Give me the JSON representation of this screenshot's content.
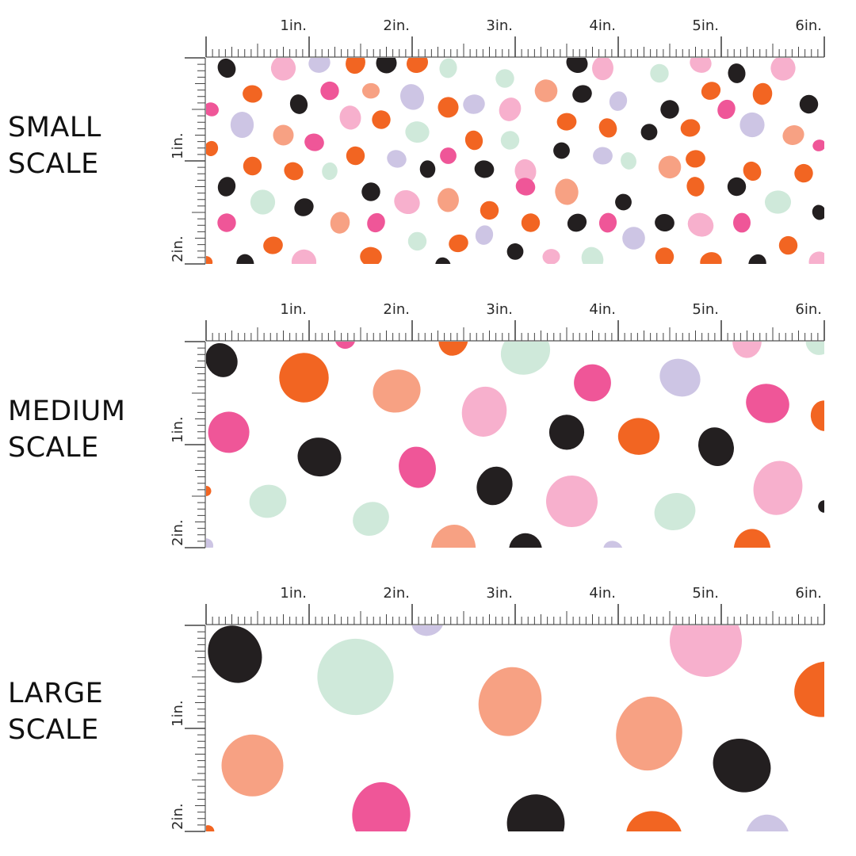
{
  "ruler_units": {
    "x_labels": [
      "1in.",
      "2in.",
      "3in.",
      "4in.",
      "5in.",
      "6in."
    ],
    "y_labels": [
      "1in.",
      "2in."
    ]
  },
  "colors": {
    "black": "#231f20",
    "orange": "#f26522",
    "salmon": "#f7a183",
    "pink": "#f7b0cd",
    "hotpink": "#ef5698",
    "lavender": "#cdc5e4",
    "mint": "#cfe9da"
  },
  "rows": [
    {
      "id": "small",
      "label_lines": [
        "SMALL",
        "SCALE"
      ],
      "dots": [
        [
          0.2,
          0.1,
          0.09,
          "black"
        ],
        [
          0.75,
          0.1,
          0.12,
          "pink"
        ],
        [
          1.1,
          0.05,
          0.1,
          "lavender"
        ],
        [
          1.45,
          0.05,
          0.1,
          "orange"
        ],
        [
          1.75,
          0.05,
          0.1,
          "black"
        ],
        [
          2.05,
          0.05,
          0.1,
          "orange"
        ],
        [
          2.35,
          0.1,
          0.09,
          "mint"
        ],
        [
          2.9,
          0.2,
          0.09,
          "mint"
        ],
        [
          3.6,
          0.05,
          0.1,
          "black"
        ],
        [
          3.85,
          0.1,
          0.11,
          "pink"
        ],
        [
          4.4,
          0.15,
          0.09,
          "mint"
        ],
        [
          4.8,
          0.05,
          0.1,
          "pink"
        ],
        [
          5.15,
          0.15,
          0.09,
          "black"
        ],
        [
          5.6,
          0.1,
          0.12,
          "pink"
        ],
        [
          0.45,
          0.35,
          0.09,
          "orange"
        ],
        [
          0.9,
          0.45,
          0.09,
          "black"
        ],
        [
          1.2,
          0.32,
          0.09,
          "hotpink"
        ],
        [
          1.6,
          0.32,
          0.08,
          "salmon"
        ],
        [
          2.0,
          0.38,
          0.12,
          "lavender"
        ],
        [
          2.35,
          0.48,
          0.1,
          "orange"
        ],
        [
          2.6,
          0.45,
          0.1,
          "lavender"
        ],
        [
          2.95,
          0.5,
          0.11,
          "pink"
        ],
        [
          3.3,
          0.32,
          0.11,
          "salmon"
        ],
        [
          3.65,
          0.35,
          0.09,
          "black"
        ],
        [
          4.0,
          0.42,
          0.09,
          "lavender"
        ],
        [
          4.5,
          0.5,
          0.09,
          "black"
        ],
        [
          4.9,
          0.32,
          0.09,
          "orange"
        ],
        [
          5.4,
          0.35,
          0.1,
          "orange"
        ],
        [
          5.85,
          0.45,
          0.09,
          "black"
        ],
        [
          0.05,
          0.5,
          0.07,
          "hotpink"
        ],
        [
          0.35,
          0.65,
          0.12,
          "lavender"
        ],
        [
          0.75,
          0.75,
          0.1,
          "salmon"
        ],
        [
          1.05,
          0.82,
          0.09,
          "hotpink"
        ],
        [
          1.4,
          0.58,
          0.11,
          "pink"
        ],
        [
          1.7,
          0.6,
          0.09,
          "orange"
        ],
        [
          2.05,
          0.72,
          0.11,
          "mint"
        ],
        [
          2.6,
          0.8,
          0.09,
          "orange"
        ],
        [
          2.95,
          0.8,
          0.09,
          "mint"
        ],
        [
          3.5,
          0.62,
          0.09,
          "orange"
        ],
        [
          3.9,
          0.68,
          0.09,
          "orange"
        ],
        [
          4.3,
          0.72,
          0.08,
          "black"
        ],
        [
          4.7,
          0.68,
          0.09,
          "orange"
        ],
        [
          5.05,
          0.5,
          0.09,
          "hotpink"
        ],
        [
          5.3,
          0.65,
          0.12,
          "lavender"
        ],
        [
          5.7,
          0.75,
          0.1,
          "salmon"
        ],
        [
          0.05,
          0.88,
          0.07,
          "orange"
        ],
        [
          0.45,
          1.05,
          0.09,
          "orange"
        ],
        [
          0.85,
          1.1,
          0.09,
          "orange"
        ],
        [
          1.2,
          1.1,
          0.08,
          "mint"
        ],
        [
          1.45,
          0.95,
          0.09,
          "orange"
        ],
        [
          1.85,
          0.98,
          0.09,
          "lavender"
        ],
        [
          2.15,
          1.08,
          0.08,
          "black"
        ],
        [
          2.35,
          0.95,
          0.08,
          "hotpink"
        ],
        [
          2.7,
          1.08,
          0.09,
          "black"
        ],
        [
          3.1,
          1.1,
          0.11,
          "pink"
        ],
        [
          3.45,
          0.9,
          0.08,
          "black"
        ],
        [
          3.85,
          0.95,
          0.09,
          "lavender"
        ],
        [
          4.1,
          1.0,
          0.08,
          "mint"
        ],
        [
          4.5,
          1.06,
          0.11,
          "salmon"
        ],
        [
          4.75,
          0.98,
          0.09,
          "orange"
        ],
        [
          5.3,
          1.1,
          0.09,
          "orange"
        ],
        [
          5.8,
          1.12,
          0.09,
          "orange"
        ],
        [
          5.95,
          0.85,
          0.06,
          "hotpink"
        ],
        [
          0.2,
          1.25,
          0.09,
          "black"
        ],
        [
          0.55,
          1.4,
          0.12,
          "mint"
        ],
        [
          0.95,
          1.45,
          0.09,
          "black"
        ],
        [
          1.3,
          1.6,
          0.1,
          "salmon"
        ],
        [
          1.6,
          1.3,
          0.09,
          "black"
        ],
        [
          1.95,
          1.4,
          0.12,
          "pink"
        ],
        [
          2.35,
          1.38,
          0.11,
          "salmon"
        ],
        [
          2.75,
          1.48,
          0.09,
          "orange"
        ],
        [
          3.1,
          1.25,
          0.09,
          "hotpink"
        ],
        [
          3.5,
          1.3,
          0.12,
          "salmon"
        ],
        [
          4.05,
          1.4,
          0.08,
          "black"
        ],
        [
          4.45,
          1.6,
          0.09,
          "black"
        ],
        [
          4.75,
          1.25,
          0.09,
          "orange"
        ],
        [
          5.15,
          1.25,
          0.09,
          "black"
        ],
        [
          5.55,
          1.4,
          0.12,
          "mint"
        ],
        [
          5.95,
          1.5,
          0.07,
          "black"
        ],
        [
          0.2,
          1.6,
          0.09,
          "hotpink"
        ],
        [
          0.65,
          1.82,
          0.09,
          "orange"
        ],
        [
          1.65,
          1.6,
          0.09,
          "hotpink"
        ],
        [
          2.05,
          1.78,
          0.09,
          "mint"
        ],
        [
          2.45,
          1.8,
          0.09,
          "orange"
        ],
        [
          2.7,
          1.72,
          0.09,
          "lavender"
        ],
        [
          3.15,
          1.6,
          0.09,
          "orange"
        ],
        [
          3.6,
          1.6,
          0.09,
          "black"
        ],
        [
          3.9,
          1.6,
          0.09,
          "hotpink"
        ],
        [
          4.15,
          1.75,
          0.11,
          "lavender"
        ],
        [
          4.8,
          1.62,
          0.12,
          "pink"
        ],
        [
          5.2,
          1.6,
          0.09,
          "hotpink"
        ],
        [
          5.65,
          1.82,
          0.09,
          "orange"
        ],
        [
          0.0,
          1.98,
          0.06,
          "orange"
        ],
        [
          0.38,
          2.0,
          0.09,
          "black"
        ],
        [
          0.95,
          1.98,
          0.12,
          "pink"
        ],
        [
          1.6,
          1.93,
          0.1,
          "orange"
        ],
        [
          2.3,
          2.02,
          0.08,
          "black"
        ],
        [
          3.0,
          1.88,
          0.08,
          "black"
        ],
        [
          3.35,
          1.93,
          0.08,
          "pink"
        ],
        [
          3.75,
          1.95,
          0.11,
          "mint"
        ],
        [
          4.45,
          1.93,
          0.09,
          "orange"
        ],
        [
          4.9,
          1.98,
          0.1,
          "orange"
        ],
        [
          5.35,
          2.0,
          0.09,
          "black"
        ],
        [
          5.95,
          1.98,
          0.1,
          "pink"
        ]
      ]
    },
    {
      "id": "medium",
      "label_lines": [
        "MEDIUM",
        "SCALE"
      ],
      "dots": [
        [
          0.15,
          0.18,
          0.16,
          "black"
        ],
        [
          0.95,
          0.35,
          0.24,
          "orange"
        ],
        [
          1.85,
          0.48,
          0.22,
          "salmon"
        ],
        [
          2.4,
          -0.02,
          0.15,
          "orange"
        ],
        [
          1.35,
          -0.03,
          0.1,
          "hotpink"
        ],
        [
          3.1,
          0.1,
          0.23,
          "mint"
        ],
        [
          2.7,
          0.68,
          0.23,
          "pink"
        ],
        [
          3.75,
          0.4,
          0.18,
          "hotpink"
        ],
        [
          4.6,
          0.35,
          0.19,
          "lavender"
        ],
        [
          5.25,
          0.0,
          0.15,
          "pink"
        ],
        [
          5.95,
          0.0,
          0.13,
          "mint"
        ],
        [
          5.45,
          0.6,
          0.2,
          "hotpink"
        ],
        [
          6.0,
          0.72,
          0.14,
          "orange"
        ],
        [
          0.22,
          0.88,
          0.2,
          "hotpink"
        ],
        [
          1.1,
          1.12,
          0.2,
          "black"
        ],
        [
          2.05,
          1.22,
          0.19,
          "hotpink"
        ],
        [
          3.5,
          0.88,
          0.17,
          "black"
        ],
        [
          4.2,
          0.92,
          0.19,
          "orange"
        ],
        [
          4.95,
          1.02,
          0.18,
          "black"
        ],
        [
          0.0,
          1.45,
          0.05,
          "orange"
        ],
        [
          0.6,
          1.55,
          0.17,
          "mint"
        ],
        [
          2.8,
          1.4,
          0.18,
          "black"
        ],
        [
          3.55,
          1.55,
          0.25,
          "pink"
        ],
        [
          4.55,
          1.65,
          0.19,
          "mint"
        ],
        [
          5.55,
          1.42,
          0.25,
          "pink"
        ],
        [
          6.0,
          1.6,
          0.06,
          "black"
        ],
        [
          1.6,
          1.72,
          0.17,
          "mint"
        ],
        [
          2.4,
          2.02,
          0.23,
          "salmon"
        ],
        [
          3.1,
          2.02,
          0.16,
          "black"
        ],
        [
          3.95,
          2.02,
          0.09,
          "lavender"
        ],
        [
          5.3,
          2.02,
          0.19,
          "orange"
        ],
        [
          0.0,
          1.98,
          0.07,
          "lavender"
        ]
      ]
    },
    {
      "id": "large",
      "label_lines": [
        "LARGE",
        "SCALE"
      ],
      "dots": [
        [
          0.28,
          0.28,
          0.27,
          "black"
        ],
        [
          1.45,
          0.5,
          0.37,
          "mint"
        ],
        [
          2.15,
          -0.04,
          0.15,
          "lavender"
        ],
        [
          2.95,
          0.74,
          0.32,
          "salmon"
        ],
        [
          4.85,
          0.15,
          0.35,
          "pink"
        ],
        [
          6.0,
          0.62,
          0.28,
          "orange"
        ],
        [
          4.3,
          1.05,
          0.34,
          "salmon"
        ],
        [
          0.45,
          1.36,
          0.3,
          "salmon"
        ],
        [
          5.2,
          1.36,
          0.27,
          "black"
        ],
        [
          1.7,
          1.84,
          0.3,
          "hotpink"
        ],
        [
          3.2,
          1.92,
          0.28,
          "black"
        ],
        [
          4.35,
          2.05,
          0.26,
          "orange"
        ],
        [
          5.45,
          2.08,
          0.23,
          "lavender"
        ],
        [
          0.02,
          2.0,
          0.06,
          "orange"
        ]
      ]
    }
  ]
}
